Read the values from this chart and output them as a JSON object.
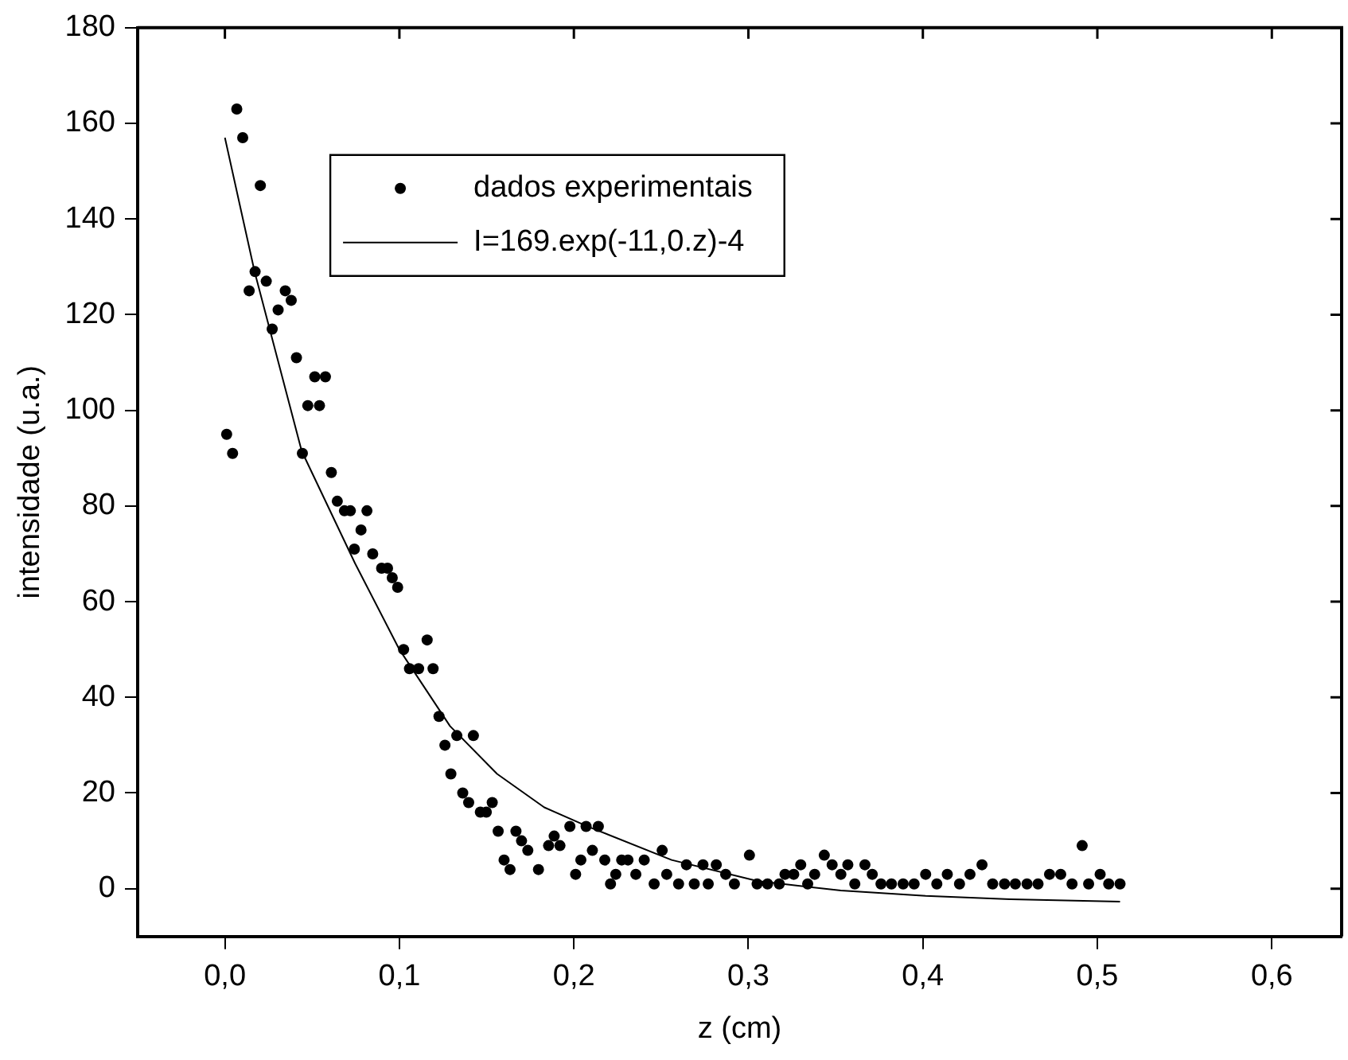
{
  "chart_data": {
    "type": "scatter",
    "xlabel": "z (cm)",
    "ylabel": "intensidade (u.a.)",
    "xlim": [
      -0.05,
      0.64
    ],
    "ylim": [
      -10,
      180
    ],
    "xticks": [
      {
        "value": 0,
        "label": "0,0"
      },
      {
        "value": 0.1,
        "label": "0,1"
      },
      {
        "value": 0.2,
        "label": "0,2"
      },
      {
        "value": 0.3,
        "label": "0,3"
      },
      {
        "value": 0.4,
        "label": "0,4"
      },
      {
        "value": 0.5,
        "label": "0,5"
      },
      {
        "value": 0.6,
        "label": "0,6"
      }
    ],
    "yticks": [
      0,
      20,
      40,
      60,
      80,
      100,
      120,
      140,
      160,
      180
    ],
    "grid": false,
    "legend": "top",
    "marker": "circle",
    "series": [
      {
        "name": "dados experimentais",
        "color": "#000000",
        "x": [
          0.001,
          0.0044,
          0.0068,
          0.0102,
          0.0139,
          0.0173,
          0.0203,
          0.0237,
          0.0271,
          0.0305,
          0.0346,
          0.038,
          0.041,
          0.0444,
          0.0475,
          0.0515,
          0.0542,
          0.0576,
          0.061,
          0.0644,
          0.0685,
          0.0719,
          0.0742,
          0.078,
          0.0814,
          0.0847,
          0.0898,
          0.0932,
          0.0959,
          0.099,
          0.1024,
          0.1058,
          0.111,
          0.1159,
          0.1193,
          0.1227,
          0.1261,
          0.1295,
          0.1329,
          0.1363,
          0.1397,
          0.1424,
          0.1464,
          0.1498,
          0.1532,
          0.1566,
          0.16,
          0.1634,
          0.1668,
          0.17,
          0.1736,
          0.1797,
          0.1855,
          0.1887,
          0.192,
          0.1977,
          0.201,
          0.204,
          0.207,
          0.2106,
          0.214,
          0.2177,
          0.221,
          0.224,
          0.2274,
          0.231,
          0.2355,
          0.2403,
          0.246,
          0.2506,
          0.2532,
          0.26,
          0.2645,
          0.269,
          0.274,
          0.277,
          0.2816,
          0.287,
          0.292,
          0.3006,
          0.305,
          0.311,
          0.3177,
          0.321,
          0.326,
          0.33,
          0.334,
          0.338,
          0.3435,
          0.348,
          0.353,
          0.357,
          0.361,
          0.3668,
          0.371,
          0.376,
          0.382,
          0.3887,
          0.395,
          0.4016,
          0.408,
          0.414,
          0.421,
          0.427,
          0.4339,
          0.44,
          0.4468,
          0.453,
          0.4597,
          0.466,
          0.4726,
          0.479,
          0.4855,
          0.4913,
          0.495,
          0.5016,
          0.5065,
          0.513
        ],
        "values": [
          95,
          91,
          163,
          157,
          125,
          129,
          147,
          127,
          117,
          121,
          125,
          123,
          111,
          91,
          101,
          107,
          101,
          107,
          87,
          81,
          79,
          79,
          71,
          75,
          79,
          70,
          67,
          67,
          65,
          63,
          50,
          46,
          46,
          52,
          46,
          36,
          30,
          24,
          32,
          20,
          18,
          32,
          16,
          16,
          18,
          12,
          6,
          4,
          12,
          10,
          8,
          4,
          9,
          11,
          9,
          13,
          3,
          6,
          13,
          8,
          13,
          6,
          1,
          3,
          6,
          6,
          3,
          6,
          1,
          8,
          3,
          1,
          5,
          1,
          5,
          1,
          5,
          3,
          1,
          7,
          1,
          1,
          1,
          3,
          3,
          5,
          1,
          3,
          7,
          5,
          3,
          5,
          1,
          5,
          3,
          1,
          1,
          1,
          1,
          3,
          1,
          3,
          1,
          3,
          5,
          1,
          1,
          1,
          1,
          1,
          3,
          3,
          1,
          9,
          1,
          3,
          1,
          1
        ]
      },
      {
        "name": "I=169.exp(-11,0.z)-4",
        "type": "line",
        "color": "#000000",
        "marker": "none",
        "line_style": "solid",
        "x": [
          0,
          0.017,
          0.044,
          0.0746,
          0.1,
          0.129,
          0.156,
          0.183,
          0.208,
          0.256,
          0.305,
          0.353,
          0.4016,
          0.45,
          0.513
        ],
        "values": [
          157,
          129,
          91.5,
          68,
          50,
          34,
          24,
          17,
          13,
          6,
          1.6,
          -0.4,
          -1.5,
          -2.2,
          -2.7
        ]
      }
    ]
  }
}
